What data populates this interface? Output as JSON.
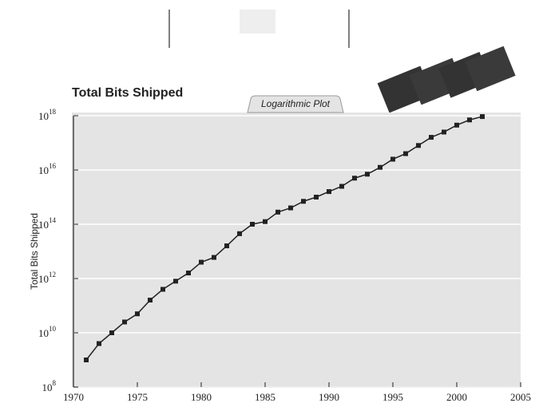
{
  "chart_data": {
    "type": "line",
    "title": "Total Bits Shipped",
    "subtitle": "Logarithmic Plot",
    "y_label": "Total Bits Shipped",
    "x": [
      1971,
      1972,
      1973,
      1974,
      1975,
      1976,
      1977,
      1978,
      1979,
      1980,
      1981,
      1982,
      1983,
      1984,
      1985,
      1986,
      1987,
      1988,
      1989,
      1990,
      1991,
      1992,
      1993,
      1994,
      1995,
      1996,
      1997,
      1998,
      1999,
      2000,
      2001,
      2002
    ],
    "series": [
      {
        "name": "Total Bits Shipped",
        "color": "#222222",
        "values": [
          1000000000.0,
          4000000000.0,
          10000000000.0,
          25000000000.0,
          50000000000.0,
          160000000000.0,
          400000000000.0,
          800000000000.0,
          1600000000000.0,
          4000000000000.0,
          6000000000000.0,
          16000000000000.0,
          45000000000000.0,
          100000000000000.0,
          125000000000000.0,
          280000000000000.0,
          400000000000000.0,
          700000000000000.0,
          1000000000000000.0,
          1600000000000000.0,
          2500000000000000.0,
          5000000000000000.0,
          7000000000000000.0,
          1.25e+16,
          2.5e+16,
          4e+16,
          8e+16,
          1.6e+17,
          2.5e+17,
          4.5e+17,
          7e+17,
          9.3e+17
        ]
      }
    ],
    "xlim": [
      1970,
      2005
    ],
    "xticks": [
      1970,
      1975,
      1980,
      1985,
      1990,
      1995,
      2000,
      2005
    ],
    "ylim": [
      100000000.0,
      1e+18
    ],
    "log_y": true,
    "grid": true,
    "yticks": [
      {
        "value": 100000000.0,
        "label": "10",
        "exponent": "8"
      },
      {
        "value": 10000000000.0,
        "label": "10",
        "exponent": "10"
      },
      {
        "value": 1000000000000.0,
        "label": "10",
        "exponent": "12"
      },
      {
        "value": 100000000000000.0,
        "label": "10",
        "exponent": "14"
      },
      {
        "value": 1e+16,
        "label": "10",
        "exponent": "16"
      },
      {
        "value": 1e+18,
        "label": "10",
        "exponent": "18"
      }
    ]
  }
}
